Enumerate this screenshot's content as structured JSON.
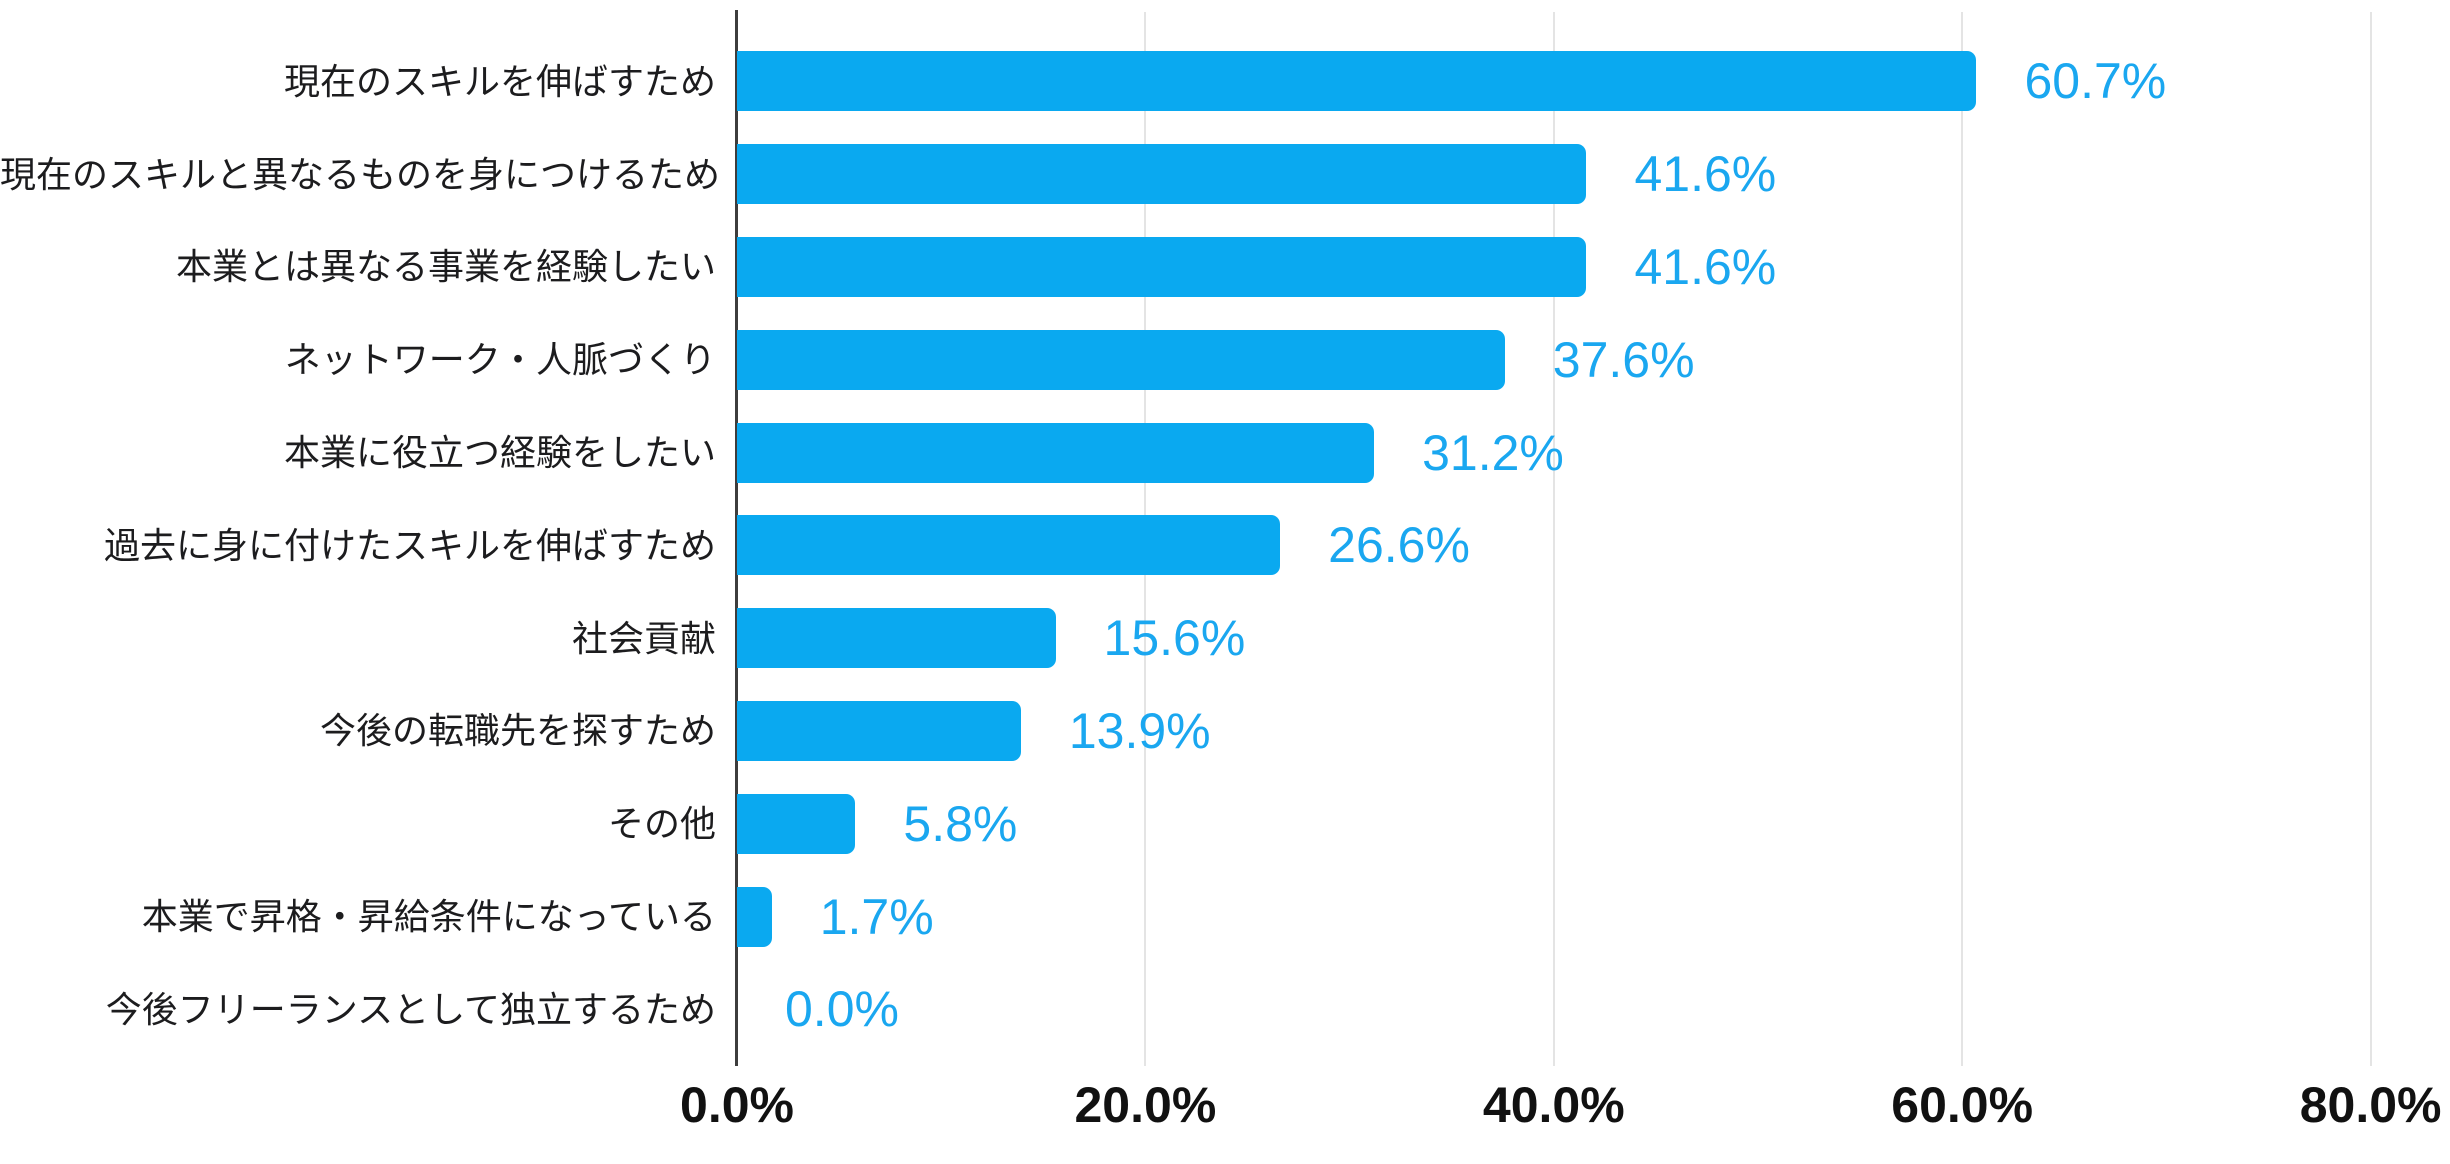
{
  "chart_data": {
    "type": "bar",
    "orientation": "horizontal",
    "title": "",
    "xlabel": "",
    "ylabel": "",
    "categories": [
      "現在のスキルを伸ばすため",
      "現在のスキルと異なるものを身につけるため",
      "本業とは異なる事業を経験したい",
      "ネットワーク・人脈づくり",
      "本業に役立つ経験をしたい",
      "過去に身に付けたスキルを伸ばすため",
      "社会貢献",
      "今後の転職先を探すため",
      "その他",
      "本業で昇格・昇給条件になっている",
      "今後フリーランスとして独立するため"
    ],
    "values": [
      60.7,
      41.6,
      41.6,
      37.6,
      31.2,
      26.6,
      15.6,
      13.9,
      5.8,
      1.7,
      0.0
    ],
    "value_labels": [
      "60.7%",
      "41.6%",
      "41.6%",
      "37.6%",
      "31.2%",
      "26.6%",
      "15.6%",
      "13.9%",
      "5.8%",
      "1.7%",
      "0.0%"
    ],
    "xlim": [
      0,
      80
    ],
    "x_ticks": [
      "0.0%",
      "20.0%",
      "40.0%",
      "60.0%",
      "80.0%"
    ],
    "x_tick_values": [
      0,
      20,
      40,
      60,
      80
    ],
    "grid": true,
    "legend": "none",
    "colors": {
      "bar": "#0aa9f0",
      "value_label": "#1aa7f0",
      "category_label": "#1c1c1e",
      "tick_label": "#111111",
      "axis_line": "#3d3d3d",
      "gridline": "#e4e4e4"
    }
  }
}
